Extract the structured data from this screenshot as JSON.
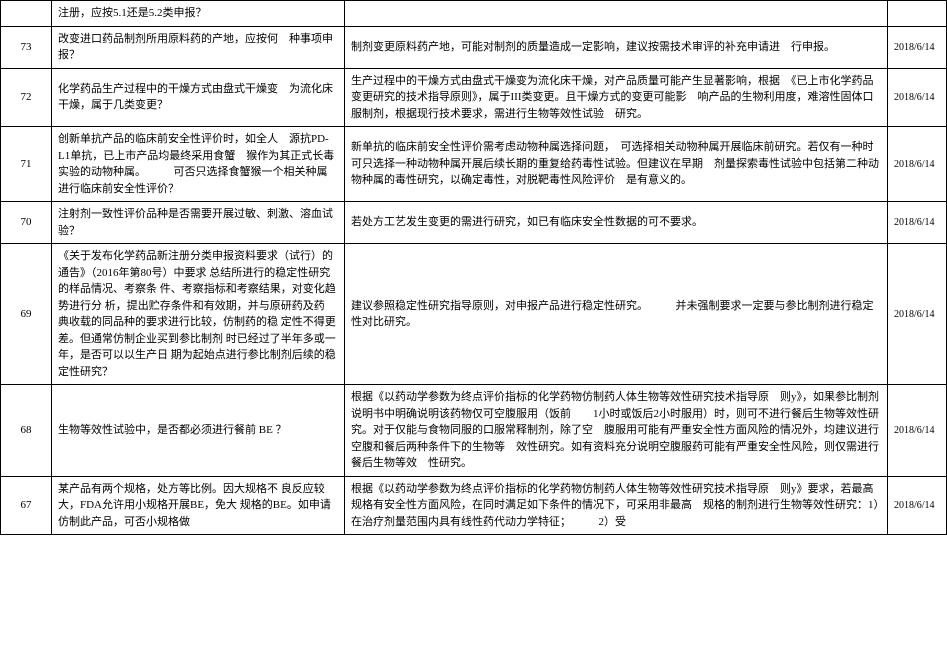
{
  "table": {
    "rows": [
      {
        "num": "",
        "question": "注册，应按5.1还是5.2类申报？",
        "answer": "",
        "date": ""
      },
      {
        "num": "73",
        "question": "改变进口药品制剂所用原料药的产地，应按何　种事项申报？",
        "answer": "制剂变更原料药产地，可能对制剂的质量造成一定影响，建议按需技术审评的补充申请进　行申报。",
        "date": "2018/6/14"
      },
      {
        "num": "72",
        "question": "化学药品生产过程中的干燥方式由盘式干燥变　为流化床干燥，属于几类变更？",
        "answer": "生产过程中的干燥方式由盘式干燥变为流化床干燥，对产品质量可能产生显著影响，根据　《已上市化学药品变更研究的技术指导原则》，属于III类变更。且干燥方式的变更可能影　响产品的生物利用度，难溶性固体口服制剂，根据现行技术要求，需进行生物等效性试验　研究。",
        "date": "2018/6/14"
      },
      {
        "num": "71",
        "question": "创新单抗产品的临床前安全性评价时，如全人　源抗PD-L1单抗，已上市产品均最终采用食蟹　猴作为其正式长毒实验的动物种属。　　　可否只选择食蟹猴一个相关种属进行临床前安全性评价？",
        "answer": "新单抗的临床前安全性评价需考虑动物种属选择问题，　可选择相关动物种属开展临床前研究。若仅有一种时可只选择一种动物种属开展后续长期的重复给药毒性试验。但建议在早期　剂量探索毒性试验中包括第二种动物种属的毒性研究，以确定毒性，对脱靶毒性风险评价　是有意义的。",
        "date": "2018/6/14"
      },
      {
        "num": "70",
        "question": "注射剂一致性评价品种是否需要开展过敏、刺激、溶血试验？",
        "answer": "若处方工艺发生变更的需进行研究，如已有临床安全性数据的可不要求。",
        "date": "2018/6/14"
      },
      {
        "num": "69",
        "question": "《关于发布化学药品新注册分类申报资料要求（试行）的通告》（2016年第80号）中要求 总结所进行的稳定性研究的样品情况、考察条 件、考察指标和考察结果，对变化趋势进行分 析，提出贮存条件和有效期，并与原研药及药 典收载的同品种的要求进行比较，仿制药的稳 定性不得更差。但通常仿制企业买到参比制剂 时已经过了半年多或一年，是否可以以生产日 期为起始点进行参比制剂后续的稳定性研究？",
        "answer": "建议参照稳定性研究指导原则，对申报产品进行稳定性研究。　　　并未强制要求一定要与参比制剂进行稳定性对比研究。",
        "date": "2018/6/14"
      },
      {
        "num": "68",
        "question": "生物等效性试验中，是否都必须进行餐前 BE ？",
        "answer": "根据《以药动学参数为终点评价指标的化学药物仿制药人体生物等效性研究技术指导原　则y》，如果参比制剂说明书中明确说明该药物仅可空腹服用（饭前　　1小时或饭后2小时服用）时，则可不进行餐后生物等效性研究。对于仅能与食物同服的口服常释制剂，除了空　腹服用可能有严重安全性方面风险的情况外，均建议进行空腹和餐后两种条件下的生物等　效性研究。如有资料充分说明空腹服药可能有严重安全性风险，则仅需进行餐后生物等效　性研究。",
        "date": "2018/6/14"
      },
      {
        "num": "67",
        "question": "某产品有两个规格，处方等比例。因大规格不 良反应较大，FDA允许用小规格开展BE，免大 规格的BE。如申请仿制此产品，可否小规格做",
        "answer": "根据《以药动学参数为终点评价指标的化学药物仿制药人体生物等效性研究技术指导原　则y》要求，若最高规格有安全性方面风险，在同时满足如下条件的情况下，可采用非最高　规格的制剂进行生物等效性研究：1）在治疗剂量范围内具有线性药代动力学特征；　　　2）受",
        "date": "2018/6/14"
      }
    ]
  }
}
